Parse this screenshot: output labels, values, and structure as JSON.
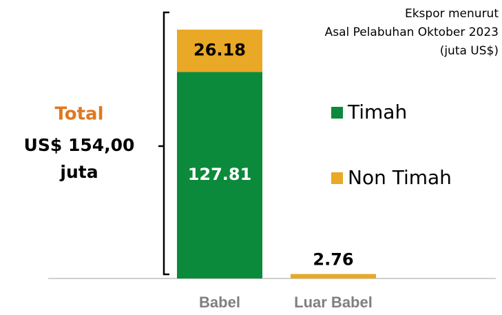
{
  "chart_data": {
    "type": "stacked-bar",
    "title": [
      "Ekspor menurut",
      "Asal Pelabuhan Oktober 2023",
      "(juta US$)"
    ],
    "annotation": [
      "Total",
      "US$ 154,00",
      "juta"
    ],
    "categories": [
      "Babel",
      "Luar Babel"
    ],
    "series": [
      {
        "name": "Timah",
        "color": "#0b8a3b",
        "values": [
          127.81,
          null
        ]
      },
      {
        "name": "Non Timah",
        "color": "#e9a825",
        "values": [
          26.18,
          2.76
        ]
      }
    ],
    "legend": "right"
  }
}
